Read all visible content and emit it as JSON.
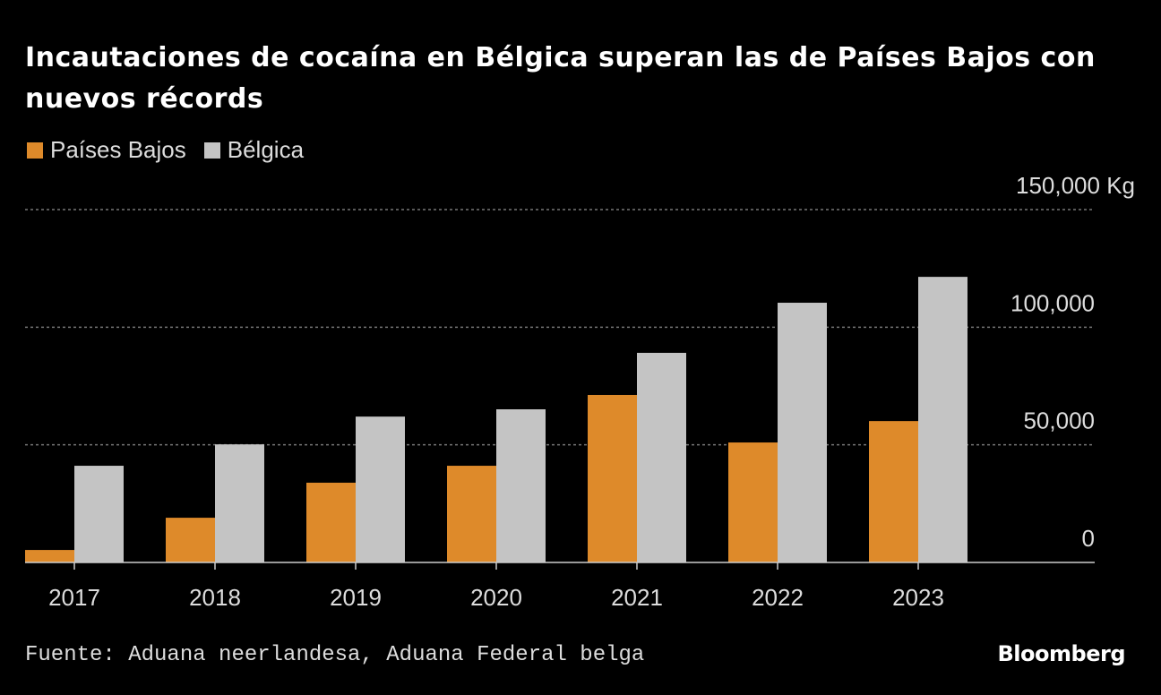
{
  "title": "Incautaciones de cocaína en Bélgica superan las de Países Bajos con nuevos récords",
  "source": "Fuente: Aduana neerlandesa, Aduana Federal belga",
  "logo": "Bloomberg",
  "chart_data": {
    "type": "bar",
    "categories": [
      "2017",
      "2018",
      "2019",
      "2020",
      "2021",
      "2022",
      "2023"
    ],
    "series": [
      {
        "name": "Países Bajos",
        "color": "#de8a2a",
        "values": [
          5300,
          19000,
          33900,
          41100,
          71200,
          51000,
          60100
        ]
      },
      {
        "name": "Bélgica",
        "color": "#c4c4c4",
        "values": [
          41100,
          50200,
          62000,
          65100,
          89100,
          110400,
          121400
        ]
      }
    ],
    "ylim": [
      0,
      150000
    ],
    "yticks": [
      0,
      50000,
      100000,
      150000
    ],
    "ytick_labels": [
      "0",
      "50,000",
      "100,000",
      "150,000 Kg"
    ],
    "grid": true,
    "legend": "top-left",
    "y_axis_position": "right"
  }
}
